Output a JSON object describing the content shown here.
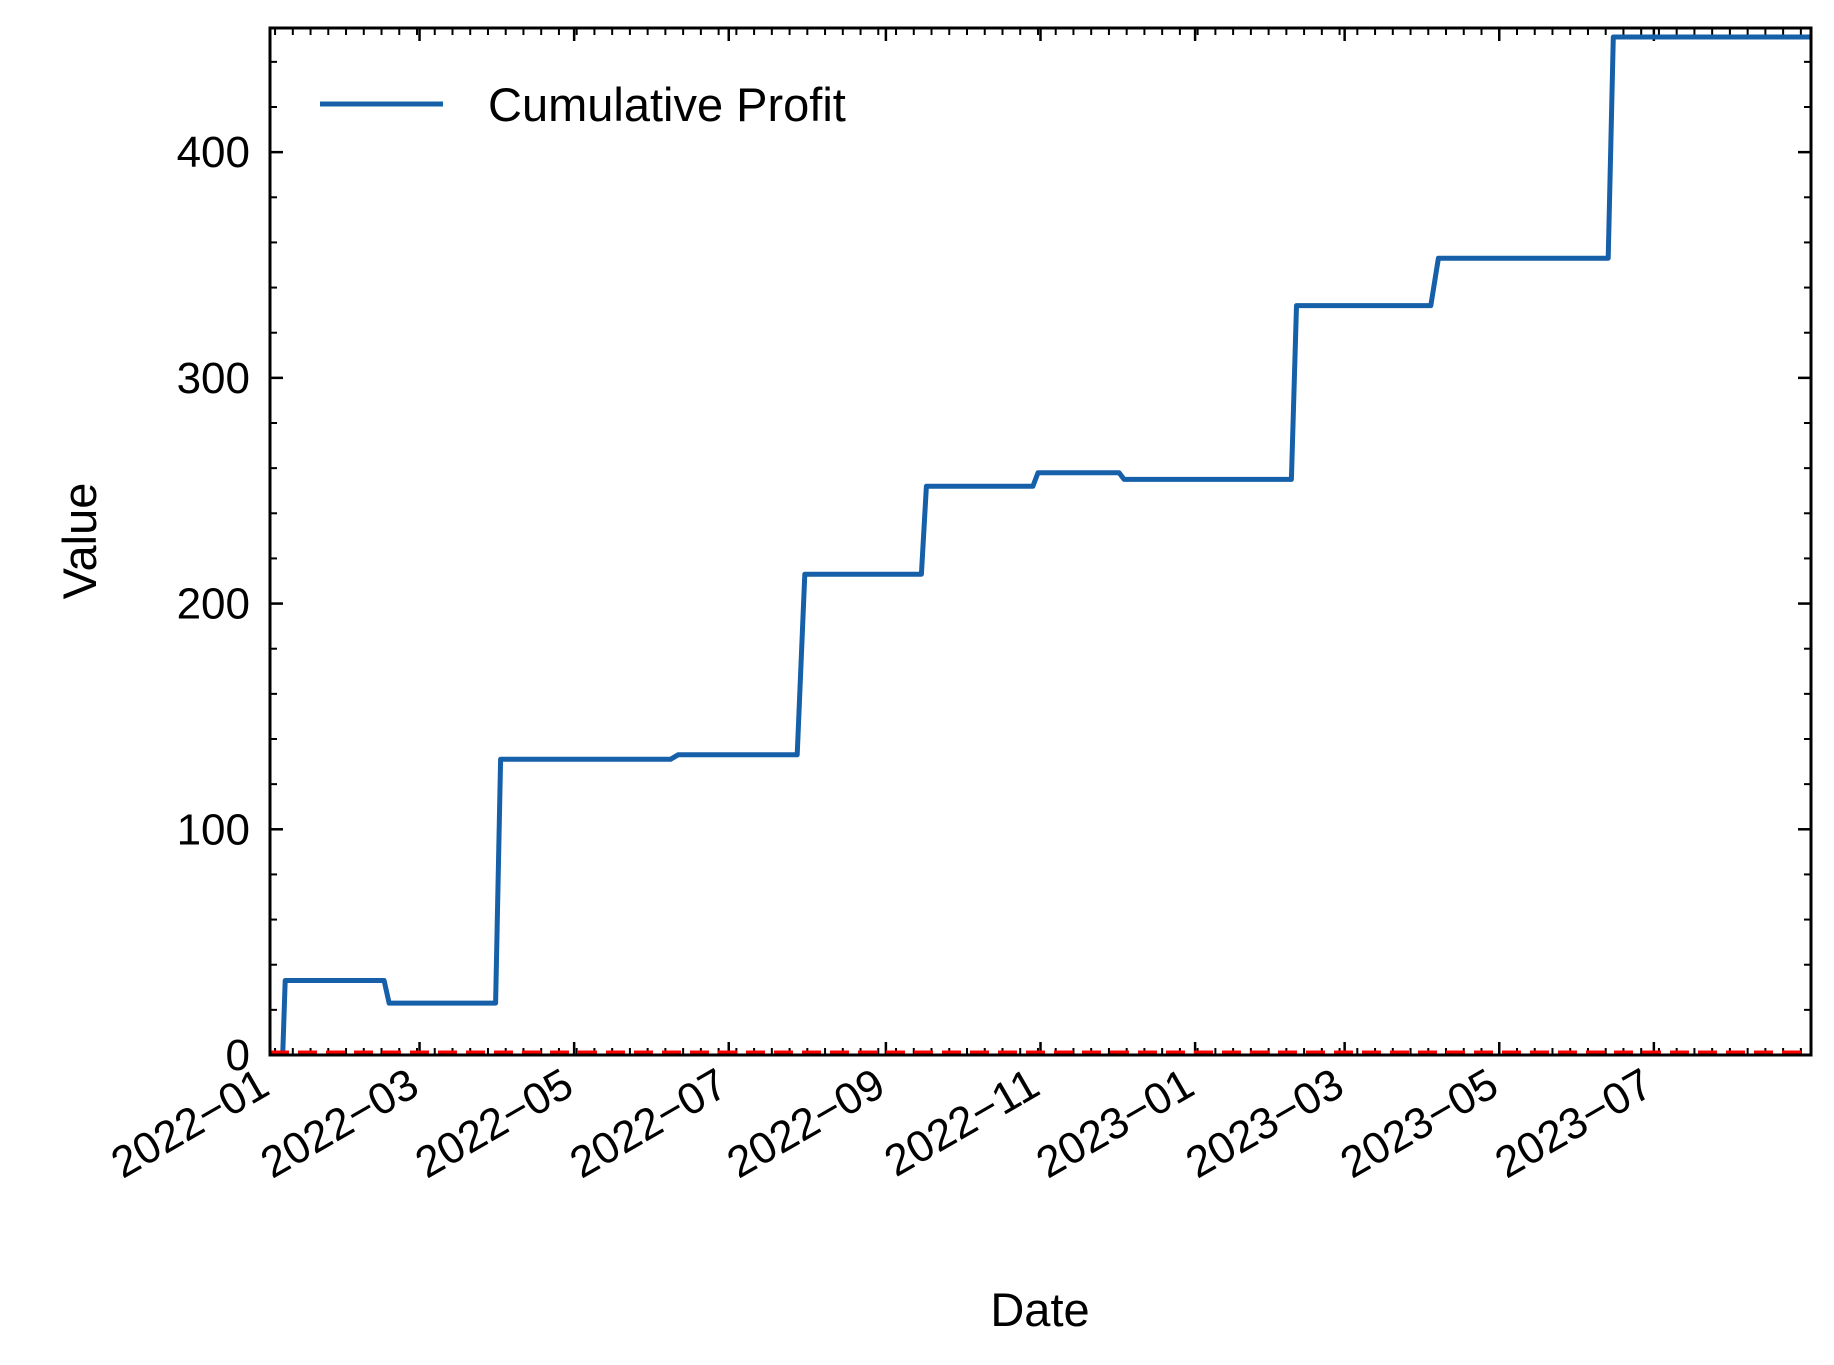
{
  "chart_data": {
    "type": "line",
    "title": "",
    "xlabel": "Date",
    "ylabel": "Value",
    "x_axis_kind": "date",
    "xlim": [
      "2022-01-01",
      "2023-09-01"
    ],
    "ylim": [
      0,
      455
    ],
    "x_tick_labels": [
      "2022−01",
      "2022−03",
      "2022−05",
      "2022−07",
      "2022−09",
      "2022−11",
      "2023−01",
      "2023−03",
      "2023−05",
      "2023−07"
    ],
    "x_tick_dates": [
      "2022-01-01",
      "2022-03-01",
      "2022-05-01",
      "2022-07-01",
      "2022-09-01",
      "2022-11-01",
      "2023-01-01",
      "2023-03-01",
      "2023-05-01",
      "2023-07-01"
    ],
    "y_ticks": [
      0,
      100,
      200,
      300,
      400
    ],
    "grid": false,
    "legend_position": "top-left",
    "series": [
      {
        "name": "Cumulative Profit",
        "color": "#1560a8",
        "style": "step",
        "points": [
          {
            "x": "2022-01-06",
            "y": 0
          },
          {
            "x": "2022-01-07",
            "y": 33
          },
          {
            "x": "2022-02-15",
            "y": 33
          },
          {
            "x": "2022-02-17",
            "y": 23
          },
          {
            "x": "2022-03-31",
            "y": 23
          },
          {
            "x": "2022-04-02",
            "y": 131
          },
          {
            "x": "2022-06-08",
            "y": 131
          },
          {
            "x": "2022-06-11",
            "y": 133
          },
          {
            "x": "2022-07-28",
            "y": 133
          },
          {
            "x": "2022-07-31",
            "y": 213
          },
          {
            "x": "2022-09-15",
            "y": 213
          },
          {
            "x": "2022-09-17",
            "y": 252
          },
          {
            "x": "2022-10-29",
            "y": 252
          },
          {
            "x": "2022-10-31",
            "y": 258
          },
          {
            "x": "2022-12-02",
            "y": 258
          },
          {
            "x": "2022-12-04",
            "y": 255
          },
          {
            "x": "2023-02-08",
            "y": 255
          },
          {
            "x": "2023-02-10",
            "y": 332
          },
          {
            "x": "2023-04-04",
            "y": 332
          },
          {
            "x": "2023-04-07",
            "y": 353
          },
          {
            "x": "2023-06-13",
            "y": 353
          },
          {
            "x": "2023-06-15",
            "y": 451
          },
          {
            "x": "2023-09-01",
            "y": 451
          }
        ]
      }
    ],
    "reference_lines": [
      {
        "y": 0,
        "color": "#ff0000",
        "style": "dashed"
      }
    ]
  }
}
